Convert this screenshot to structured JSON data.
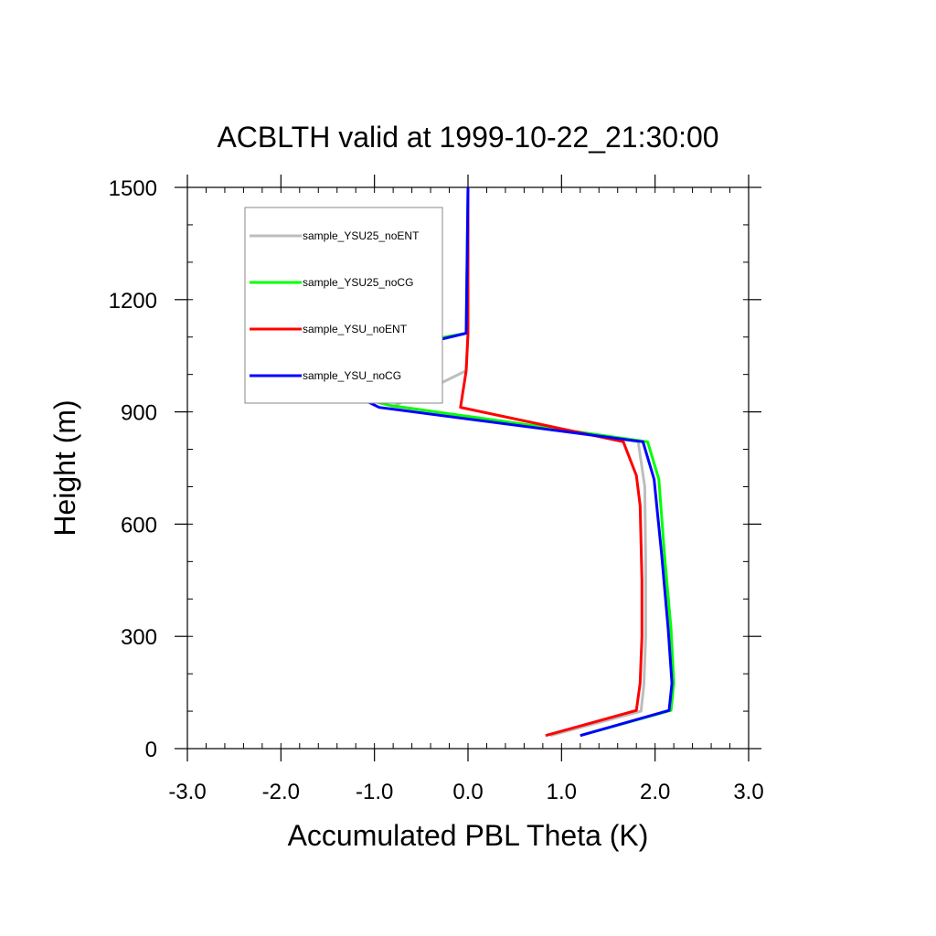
{
  "chart_data": {
    "type": "line",
    "title": "ACBLTH valid at 1999-10-22_21:30:00",
    "xlabel": "Accumulated PBL Theta (K)",
    "ylabel": "Height (m)",
    "xlim": [
      -3.0,
      3.0
    ],
    "ylim": [
      0,
      1500
    ],
    "x_ticks": [
      "-3.0",
      "-2.0",
      "-1.0",
      "0.0",
      "1.0",
      "2.0",
      "3.0"
    ],
    "y_ticks": [
      "0",
      "300",
      "600",
      "900",
      "1200",
      "1500"
    ],
    "grid": false,
    "legend_position": "top-left",
    "series": [
      {
        "name": "sample_YSU25_noENT",
        "color": "#bdbdbd",
        "points": [
          [
            0.88,
            35
          ],
          [
            1.85,
            100
          ],
          [
            1.88,
            170
          ],
          [
            1.9,
            300
          ],
          [
            1.9,
            500
          ],
          [
            1.89,
            700
          ],
          [
            1.82,
            820
          ],
          [
            -0.82,
            912
          ],
          [
            -0.02,
            1010
          ],
          [
            0.0,
            1110
          ],
          [
            0.0,
            1500
          ]
        ]
      },
      {
        "name": "sample_YSU25_noCG",
        "color": "#00ff00",
        "points": [
          [
            1.2,
            35
          ],
          [
            2.17,
            102
          ],
          [
            2.2,
            175
          ],
          [
            2.17,
            320
          ],
          [
            2.1,
            520
          ],
          [
            2.04,
            720
          ],
          [
            1.92,
            820
          ],
          [
            -0.85,
            918
          ],
          [
            -2.28,
            1008
          ],
          [
            -0.02,
            1110
          ],
          [
            0.0,
            1500
          ]
        ]
      },
      {
        "name": "sample_YSU_noENT",
        "color": "#ff0000",
        "points": [
          [
            0.83,
            35
          ],
          [
            1.8,
            102
          ],
          [
            1.84,
            175
          ],
          [
            1.86,
            300
          ],
          [
            1.86,
            450
          ],
          [
            1.84,
            650
          ],
          [
            1.8,
            730
          ],
          [
            1.66,
            820
          ],
          [
            -0.08,
            912
          ],
          [
            -0.02,
            1010
          ],
          [
            0.0,
            1110
          ],
          [
            0.0,
            1500
          ]
        ]
      },
      {
        "name": "sample_YSU_noCG",
        "color": "#0000ff",
        "points": [
          [
            1.2,
            35
          ],
          [
            2.15,
            102
          ],
          [
            2.18,
            175
          ],
          [
            2.14,
            320
          ],
          [
            2.07,
            520
          ],
          [
            1.99,
            720
          ],
          [
            1.87,
            820
          ],
          [
            -0.95,
            912
          ],
          [
            -1.73,
            1008
          ],
          [
            -0.02,
            1110
          ],
          [
            0.0,
            1500
          ]
        ]
      }
    ]
  }
}
